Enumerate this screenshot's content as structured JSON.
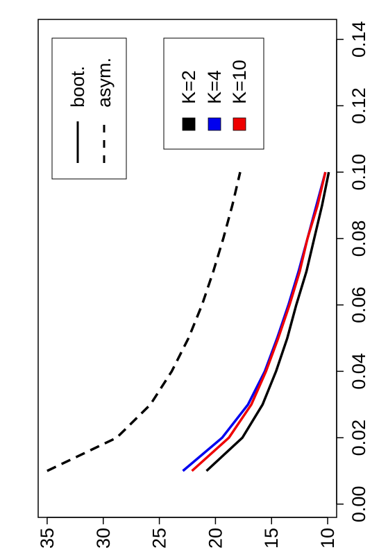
{
  "chart_data": {
    "type": "line",
    "title": "",
    "xlabel": "",
    "ylabel": "",
    "xlim": [
      -0.004,
      0.146
    ],
    "ylim": [
      9.2,
      35.8
    ],
    "x_ticks": [
      "0.00",
      "0.02",
      "0.04",
      "0.06",
      "0.08",
      "0.10",
      "0.12",
      "0.14"
    ],
    "y_ticks": [
      "10",
      "15",
      "20",
      "25",
      "30",
      "35"
    ],
    "orientation": "rotated 90° counter-clockwise",
    "grid": false,
    "series": [
      {
        "name": "asym.",
        "style": "dashed",
        "color": "#000000",
        "x": [
          0.01,
          0.02,
          0.03,
          0.04,
          0.05,
          0.06,
          0.07,
          0.08,
          0.09,
          0.1
        ],
        "y": [
          35.0,
          28.8,
          25.8,
          23.9,
          22.4,
          21.2,
          20.2,
          19.3,
          18.5,
          17.8
        ]
      },
      {
        "name": "K=2",
        "style": "solid",
        "color": "#000000",
        "x": [
          0.01,
          0.02,
          0.03,
          0.04,
          0.05,
          0.06,
          0.07,
          0.08,
          0.09,
          0.1
        ],
        "y": [
          20.8,
          17.6,
          15.8,
          14.6,
          13.6,
          12.8,
          11.9,
          11.2,
          10.5,
          9.9
        ]
      },
      {
        "name": "K=4",
        "style": "solid",
        "color": "#0000ee",
        "x": [
          0.01,
          0.02,
          0.03,
          0.04,
          0.05,
          0.06,
          0.07,
          0.08,
          0.09,
          0.1
        ],
        "y": [
          22.9,
          19.4,
          17.1,
          15.6,
          14.5,
          13.5,
          12.6,
          11.8,
          11.0,
          10.2
        ]
      },
      {
        "name": "K=10",
        "style": "solid",
        "color": "#ee0000",
        "x": [
          0.01,
          0.02,
          0.03,
          0.04,
          0.05,
          0.06,
          0.07,
          0.08,
          0.09,
          0.1
        ],
        "y": [
          22.1,
          18.8,
          16.8,
          15.5,
          14.4,
          13.4,
          12.5,
          11.8,
          10.9,
          10.2
        ]
      }
    ],
    "legend_linetype": {
      "placement": "top-left",
      "entries": [
        {
          "label": "boot.",
          "style": "solid"
        },
        {
          "label": "asym.",
          "style": "dashed"
        }
      ]
    },
    "legend_color": {
      "placement": "top-center",
      "entries": [
        {
          "label": "K=2",
          "color": "#000000"
        },
        {
          "label": "K=4",
          "color": "#0000ee"
        },
        {
          "label": "K=10",
          "color": "#ee0000"
        }
      ]
    }
  }
}
